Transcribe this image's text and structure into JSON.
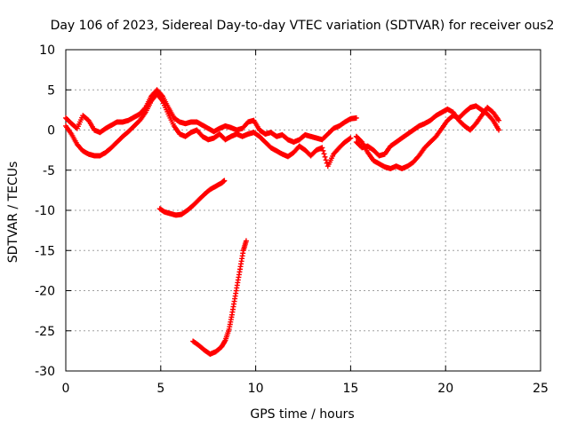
{
  "chart_data": {
    "type": "scatter",
    "title": "Day 106 of 2023, Sidereal Day-to-day VTEC variation (SDTVAR) for receiver ous2",
    "xlabel": "GPS time / hours",
    "ylabel": "SDTVAR / TECUs",
    "xlim": [
      0,
      25
    ],
    "ylim": [
      -30,
      10
    ],
    "xticks": [
      0,
      5,
      10,
      15,
      20,
      25
    ],
    "yticks": [
      10,
      5,
      0,
      -5,
      -10,
      -15,
      -20,
      -25,
      -30
    ],
    "grid": true,
    "marker": "+",
    "marker_color": "#ff0000",
    "series": [
      {
        "name": "main-trace-upper",
        "x": [
          0.0,
          0.3,
          0.6,
          0.9,
          1.2,
          1.5,
          1.8,
          2.1,
          2.4,
          2.7,
          3.0,
          3.3,
          3.6,
          3.9,
          4.2,
          4.5,
          4.8,
          5.1,
          5.4,
          5.7,
          6.0,
          6.3,
          6.6,
          6.9,
          7.2,
          7.5,
          7.8,
          8.1,
          8.4,
          8.7,
          9.0,
          9.3,
          9.6,
          9.9,
          10.2,
          10.5,
          10.8,
          11.1,
          11.4,
          11.7,
          12.0,
          12.3,
          12.6,
          12.9,
          13.2,
          13.5,
          13.8,
          14.1,
          14.4,
          14.7,
          15.0,
          15.3
        ],
        "y": [
          1.5,
          0.8,
          0.2,
          1.8,
          1.2,
          0.0,
          -0.3,
          0.2,
          0.6,
          1.0,
          1.0,
          1.2,
          1.6,
          2.0,
          2.8,
          4.2,
          5.0,
          4.2,
          2.8,
          1.5,
          1.0,
          0.8,
          1.0,
          1.0,
          0.6,
          0.2,
          -0.2,
          0.2,
          0.5,
          0.3,
          0.0,
          0.2,
          1.0,
          1.2,
          0.0,
          -0.5,
          -0.3,
          -0.8,
          -0.6,
          -1.2,
          -1.5,
          -1.2,
          -0.6,
          -0.8,
          -1.0,
          -1.2,
          -0.5,
          0.2,
          0.5,
          1.0,
          1.4,
          1.5
        ]
      },
      {
        "name": "main-trace-lower",
        "x": [
          0.0,
          0.3,
          0.6,
          0.9,
          1.2,
          1.5,
          1.8,
          2.1,
          2.4,
          2.7,
          3.0,
          3.3,
          3.6,
          3.9,
          4.2,
          4.5,
          4.8,
          5.1,
          5.4,
          5.7,
          6.0,
          6.3,
          6.6,
          6.9,
          7.2,
          7.5,
          7.8,
          8.1,
          8.4,
          8.7,
          9.0,
          9.3,
          9.6,
          9.9,
          10.2,
          10.5,
          10.8,
          11.1,
          11.4,
          11.7,
          12.0,
          12.3,
          12.6,
          12.9,
          13.2,
          13.5,
          13.8,
          14.1,
          14.4,
          14.7,
          15.0
        ],
        "y": [
          0.5,
          -0.5,
          -1.8,
          -2.6,
          -3.0,
          -3.2,
          -3.2,
          -2.8,
          -2.2,
          -1.5,
          -0.8,
          -0.2,
          0.5,
          1.2,
          2.2,
          3.6,
          4.5,
          3.6,
          2.0,
          0.5,
          -0.5,
          -0.8,
          -0.3,
          0.0,
          -0.8,
          -1.2,
          -1.0,
          -0.5,
          -1.2,
          -0.8,
          -0.5,
          -0.8,
          -0.5,
          -0.3,
          -0.8,
          -1.5,
          -2.2,
          -2.6,
          -3.0,
          -3.3,
          -2.8,
          -2.0,
          -2.5,
          -3.2,
          -2.5,
          -2.2,
          -4.5,
          -3.0,
          -2.2,
          -1.5,
          -1.0
        ]
      },
      {
        "name": "main-trace-end",
        "x": [
          15.3,
          15.6,
          15.9,
          16.2,
          16.5,
          16.8,
          17.1,
          17.4,
          17.7,
          18.0,
          18.3,
          18.6,
          18.9,
          19.2,
          19.5,
          19.8,
          20.1,
          20.4,
          20.7,
          21.0,
          21.3,
          21.6,
          21.9,
          22.2,
          22.5,
          22.8
        ],
        "y": [
          -0.8,
          -1.5,
          -2.8,
          -3.8,
          -4.2,
          -4.6,
          -4.8,
          -4.5,
          -4.8,
          -4.5,
          -4.0,
          -3.2,
          -2.2,
          -1.5,
          -0.8,
          0.2,
          1.2,
          1.8,
          1.5,
          2.2,
          2.8,
          3.0,
          2.5,
          2.0,
          1.2,
          0.0
        ]
      },
      {
        "name": "main-trace-end-alt",
        "x": [
          15.3,
          15.6,
          15.9,
          16.2,
          16.5,
          16.8,
          17.1,
          17.4,
          17.7,
          18.0,
          18.3,
          18.6,
          18.9,
          19.2,
          19.5,
          19.8,
          20.1,
          20.4,
          20.7,
          21.0,
          21.3,
          21.6,
          21.9,
          22.2,
          22.5,
          22.8
        ],
        "y": [
          -1.5,
          -2.2,
          -2.0,
          -2.5,
          -3.2,
          -3.0,
          -2.0,
          -1.5,
          -1.0,
          -0.5,
          0.0,
          0.5,
          0.8,
          1.2,
          1.8,
          2.2,
          2.6,
          2.2,
          1.2,
          0.5,
          0.0,
          0.8,
          1.8,
          2.8,
          2.2,
          1.2
        ]
      },
      {
        "name": "segment-minus-10",
        "x": [
          4.95,
          5.2,
          5.5,
          5.8,
          6.1,
          6.4,
          6.7,
          7.0,
          7.3,
          7.6,
          7.9,
          8.2,
          8.35
        ],
        "y": [
          -9.8,
          -10.2,
          -10.4,
          -10.6,
          -10.5,
          -10.0,
          -9.4,
          -8.7,
          -8.0,
          -7.4,
          -7.0,
          -6.6,
          -6.3
        ]
      },
      {
        "name": "segment-minus-25",
        "x": [
          6.7,
          7.0,
          7.3,
          7.6,
          7.9,
          8.2,
          8.4,
          8.6,
          8.75,
          8.9,
          9.05,
          9.2,
          9.35,
          9.5
        ],
        "y": [
          -26.3,
          -26.8,
          -27.4,
          -27.9,
          -27.6,
          -27.0,
          -26.2,
          -24.8,
          -23.0,
          -21.0,
          -19.0,
          -17.0,
          -15.0,
          -13.8
        ]
      }
    ]
  }
}
